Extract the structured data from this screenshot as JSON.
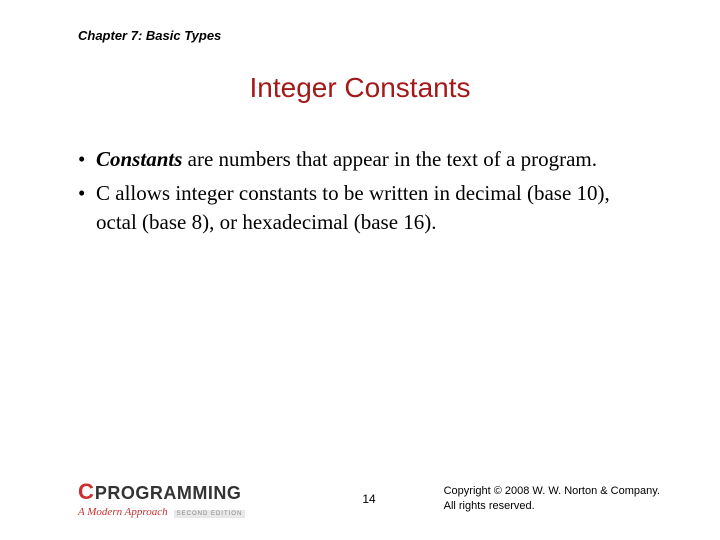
{
  "chapter_heading": "Chapter 7: Basic Types",
  "slide_title": "Integer Constants",
  "bullets": [
    {
      "bold_lead": "Constants",
      "rest": " are numbers that appear in the text of a program."
    },
    {
      "bold_lead": "",
      "rest": "C allows integer constants to be written in decimal (base 10), octal (base 8), or hexadecimal (base 16)."
    }
  ],
  "logo": {
    "c": "C",
    "programming": "PROGRAMMING",
    "approach": "A Modern Approach",
    "edition": "SECOND EDITION"
  },
  "page_number": "14",
  "copyright_line1": "Copyright © 2008 W. W. Norton & Company.",
  "copyright_line2": "All rights reserved.",
  "colors": {
    "title_color": "#a31919",
    "logo_red": "#c93030",
    "text_color": "#000000",
    "background": "#ffffff"
  },
  "typography": {
    "chapter_fontsize": 13,
    "title_fontsize": 28,
    "body_fontsize": 21,
    "footer_fontsize": 11,
    "pagenum_fontsize": 12
  }
}
